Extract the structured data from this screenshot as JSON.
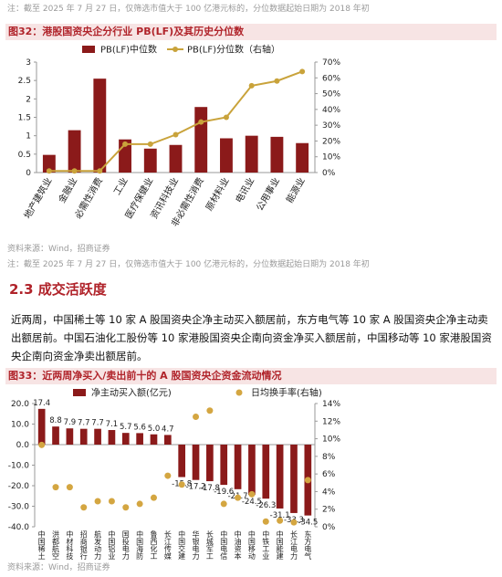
{
  "note_1": "注：截至 2025 年 7 月 27 日，仅筛选市值大于 100 亿港元标的，分位数据起始日期为 2018 年初",
  "source_1": "资料来源：Wind，招商证券",
  "note_2": "注：截至 2025 年 7 月 27 日，仅筛选市值大于 100 亿港元标的，分位数据起始日期为 2018 年初",
  "section_heading": "2.3 成交活跃度",
  "paragraph": "近两周，中国稀土等 10 家 A 股国资央企净主动买入额居前，东方电气等 10 家 A 股国资央企净主动卖出额居前。中国石油化工股份等 10 家港股国资央企南向资金净买入额居前，中国移动等 10 家港股国资央企南向资金净卖出额居前。",
  "source_2": "资料来源：Wind，招商证券",
  "chart_data": [
    {
      "type": "bar",
      "title": "图32：港股国资央企分行业 PB(LF)及其历史分位数",
      "categories": [
        "地产建筑业",
        "金融业",
        "必需性消费",
        "工业",
        "医疗保健业",
        "资讯科技业",
        "非必需性消费",
        "原材料业",
        "电讯业",
        "公用事业",
        "能源业"
      ],
      "series": [
        {
          "name": "PB(LF)中位数",
          "type": "bar",
          "color": "#8b1a1a",
          "values": [
            0.48,
            1.15,
            2.55,
            0.9,
            0.65,
            0.75,
            1.78,
            0.93,
            1.0,
            0.97,
            0.8
          ]
        },
        {
          "name": "PB(LF)分位数（右轴）",
          "type": "line",
          "axis": "y2",
          "color": "#c9a33b",
          "values": [
            1,
            1,
            1,
            18,
            18,
            24,
            32,
            35,
            55,
            58,
            64
          ]
        }
      ],
      "ylim": [
        0,
        3
      ],
      "yticks": [
        0,
        0.5,
        1,
        1.5,
        2,
        2.5,
        3
      ],
      "y2lim": [
        0,
        70
      ],
      "y2ticks": [
        {
          "value": 0,
          "label": "0%"
        },
        {
          "value": 10,
          "label": "10%"
        },
        {
          "value": 20,
          "label": "20%"
        },
        {
          "value": 30,
          "label": "30%"
        },
        {
          "value": 40,
          "label": "40%"
        },
        {
          "value": 50,
          "label": "50%"
        },
        {
          "value": 60,
          "label": "60%"
        },
        {
          "value": 70,
          "label": "70%"
        }
      ]
    },
    {
      "type": "bar",
      "title": "图33：近两周净买入/卖出前十的 A 股国资央企资金流动情况",
      "categories": [
        "中国稀土",
        "洪都航空",
        "中材科技",
        "招商银行",
        "航发动力",
        "中国铝业",
        "国投电力",
        "中国海防",
        "鲁西化工",
        "长江传媒",
        "中国交建",
        "华银电力",
        "长城军工",
        "中国电信",
        "中油资本",
        "中国移动",
        "中铁工业",
        "中国能建",
        "长江电力",
        "东方电气"
      ],
      "series": [
        {
          "name": "净主动买入额(亿元)",
          "type": "bar",
          "color": "#8b1a1a",
          "values": [
            17.4,
            8.8,
            7.9,
            7.7,
            7.7,
            7.1,
            5.7,
            5.6,
            5.0,
            4.7,
            -15.8,
            -17.2,
            -17.8,
            -19.6,
            -21.7,
            -24.5,
            -26.3,
            -31.1,
            -33.3,
            -34.5
          ],
          "value_labels": [
            "17.4",
            "8.8",
            "7.9",
            "7.7",
            "7.7",
            "7.1",
            "5.7",
            "5.6",
            "5.0",
            "4.7",
            "-15.8",
            "-17.2",
            "-17.8",
            "-19.6",
            "-21.7",
            "-24.5",
            "-26.3",
            "-31.1",
            "-33.3",
            "-34.5"
          ]
        },
        {
          "name": "日均换手率(右轴)",
          "type": "scatter",
          "axis": "y2",
          "color": "#d4a641",
          "values": [
            9.3,
            4.5,
            4.5,
            2.2,
            2.9,
            2.9,
            2.2,
            2.6,
            3.3,
            5.8,
            4.8,
            12.5,
            13.2,
            2.6,
            3.3,
            3.7,
            0.6,
            0.7,
            0.5,
            5.3
          ]
        }
      ],
      "ylim": [
        -40,
        20
      ],
      "yticks": [
        {
          "value": -40,
          "label": "-40.0"
        },
        {
          "value": -30,
          "label": "-30.0"
        },
        {
          "value": -20,
          "label": "-20.0"
        },
        {
          "value": -10,
          "label": "-10.0"
        },
        {
          "value": 0,
          "label": "0.0"
        },
        {
          "value": 10,
          "label": "10.0"
        },
        {
          "value": 20,
          "label": "20.0"
        }
      ],
      "y2lim": [
        0,
        14
      ],
      "y2ticks": [
        {
          "value": 0,
          "label": "0%"
        },
        {
          "value": 2,
          "label": "2%"
        },
        {
          "value": 4,
          "label": "4%"
        },
        {
          "value": 6,
          "label": "6%"
        },
        {
          "value": 8,
          "label": "8%"
        },
        {
          "value": 10,
          "label": "10%"
        },
        {
          "value": 12,
          "label": "12%"
        },
        {
          "value": 14,
          "label": "14%"
        }
      ]
    }
  ]
}
